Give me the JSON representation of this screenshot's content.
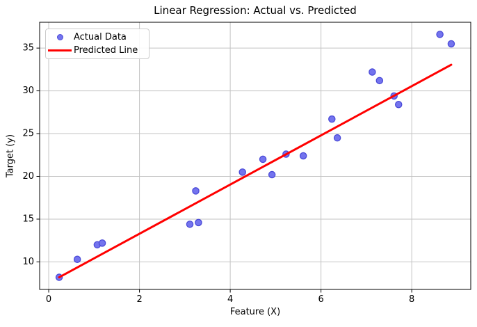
{
  "title": "Linear Regression: Actual vs. Predicted",
  "chart_data": {
    "type": "scatter",
    "title": "Linear Regression: Actual vs. Predicted",
    "xlabel": "Feature (X)",
    "ylabel": "Target (y)",
    "xlim": [
      -0.2,
      9.3
    ],
    "ylim": [
      6.78,
      38.02
    ],
    "x_ticks": [
      0,
      2,
      4,
      6,
      8
    ],
    "y_ticks": [
      10,
      15,
      20,
      25,
      30,
      35
    ],
    "grid": true,
    "legend_position": "upper-left",
    "series": [
      {
        "name": "Actual Data",
        "type": "scatter",
        "fill_color": "#7474ee",
        "edge_color": "#4a4ad8",
        "points": [
          [
            0.23,
            8.2
          ],
          [
            0.63,
            10.3
          ],
          [
            1.07,
            12.0
          ],
          [
            1.18,
            12.2
          ],
          [
            3.11,
            14.4
          ],
          [
            3.3,
            14.6
          ],
          [
            3.24,
            18.3
          ],
          [
            4.27,
            20.5
          ],
          [
            4.72,
            22.0
          ],
          [
            4.92,
            20.2
          ],
          [
            5.23,
            22.6
          ],
          [
            5.61,
            22.4
          ],
          [
            6.24,
            26.7
          ],
          [
            6.36,
            24.5
          ],
          [
            7.13,
            32.2
          ],
          [
            7.29,
            31.2
          ],
          [
            7.61,
            29.4
          ],
          [
            7.71,
            28.4
          ],
          [
            8.62,
            36.6
          ],
          [
            8.87,
            35.5
          ]
        ]
      },
      {
        "name": "Predicted Line",
        "type": "line",
        "color": "#ff0000",
        "points": [
          [
            0.23,
            8.2
          ],
          [
            8.87,
            33.05
          ]
        ]
      }
    ]
  },
  "legend": {
    "items": [
      {
        "label": "Actual Data",
        "marker": "circle"
      },
      {
        "label": "Predicted Line",
        "marker": "line"
      }
    ]
  },
  "colors": {
    "background": "#ffffff",
    "grid": "#c3c3c3",
    "spine": "#000000",
    "text": "#000000",
    "scatter_fill": "#7474ee",
    "scatter_edge": "#4a4ad8",
    "line": "#ff0000"
  }
}
